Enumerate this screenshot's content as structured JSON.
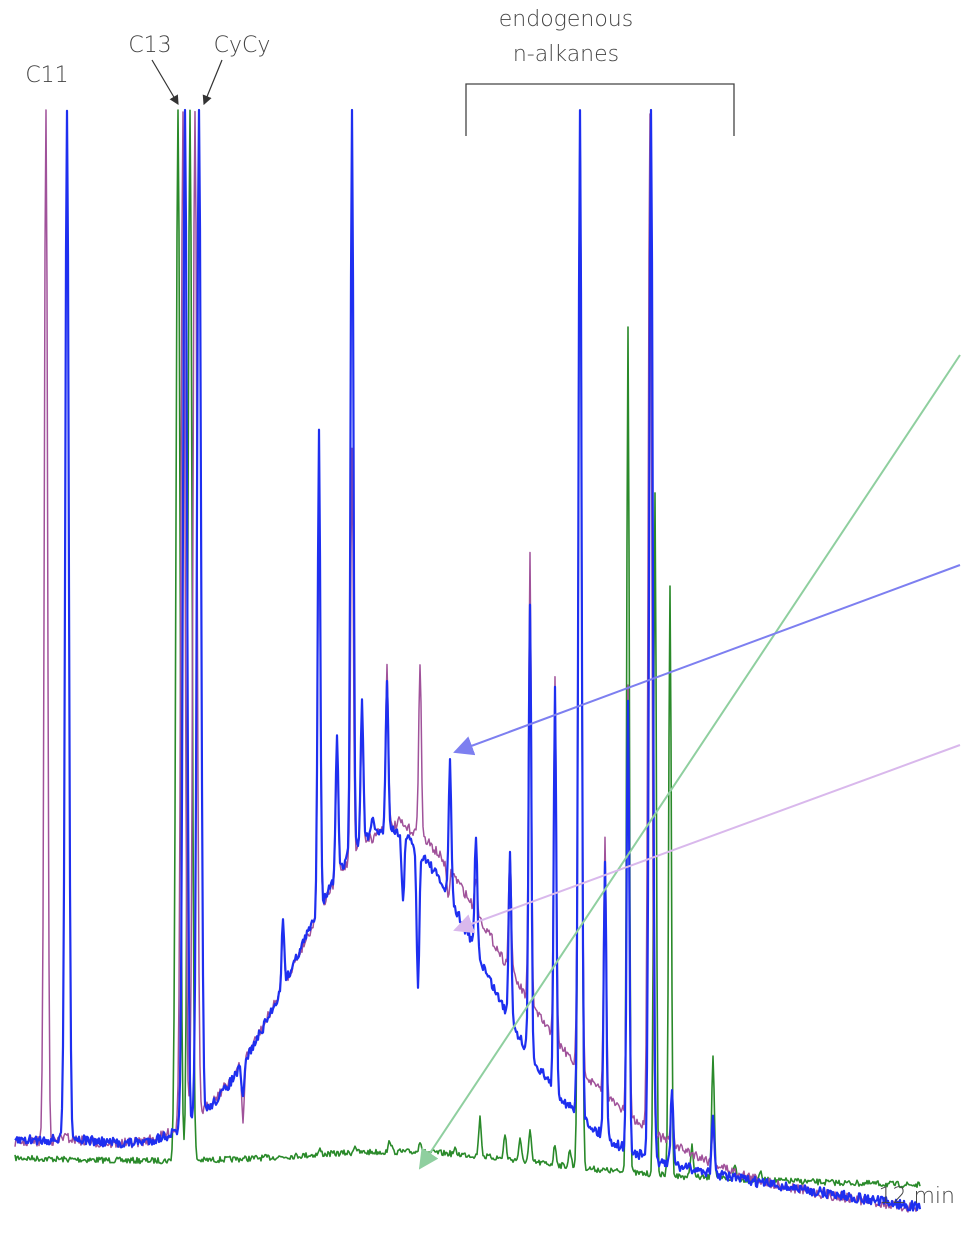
{
  "labels": {
    "c11": "C11",
    "c13": "C13",
    "cycy": "CyCy",
    "group_line1": "endogenous",
    "group_line2": "n-alkanes",
    "time": "12 min"
  }
}
